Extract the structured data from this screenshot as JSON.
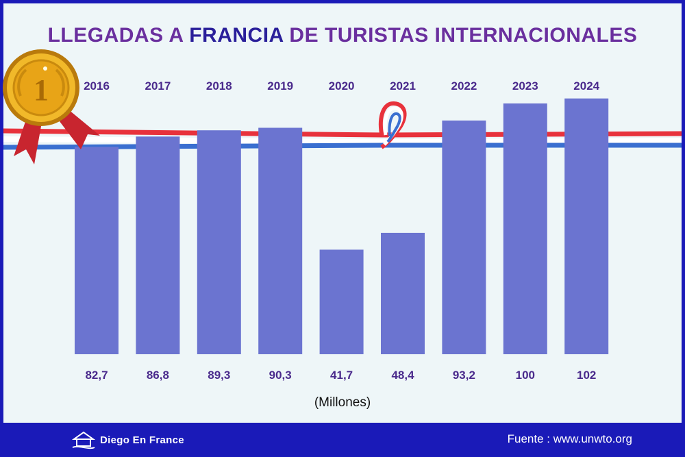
{
  "title": {
    "part1": "LLEGADAS A ",
    "highlight": "FRANCIA",
    "part2": " DE TURISTAS INTERNACIONALES"
  },
  "chart_data": {
    "type": "bar",
    "title": "LLEGADAS A FRANCIA DE TURISTAS INTERNACIONALES",
    "categories": [
      "2016",
      "2017",
      "2018",
      "2019",
      "2020",
      "2021",
      "2022",
      "2023",
      "2024"
    ],
    "values": [
      82.7,
      86.8,
      89.3,
      90.3,
      41.7,
      48.4,
      93.2,
      100,
      102
    ],
    "value_labels": [
      "82,7",
      "86,8",
      "89,3",
      "90,3",
      "41,7",
      "48,4",
      "93,2",
      "100",
      "102"
    ],
    "unit": "(Millones)",
    "xlabel": "",
    "ylabel": "",
    "bar_color": "#6b74d0"
  },
  "footer": {
    "brand": "Diego En France",
    "source": "Fuente : www.unwto.org"
  },
  "colors": {
    "frame": "#1a1ab8",
    "background": "#eef6f8",
    "title": "#6a2f9e",
    "title_highlight": "#2a1f9a",
    "labels": "#4a2a8c",
    "ribbon_red": "#e8323c",
    "ribbon_blue": "#3a6fd0",
    "medal_gold": "#e8a417"
  }
}
